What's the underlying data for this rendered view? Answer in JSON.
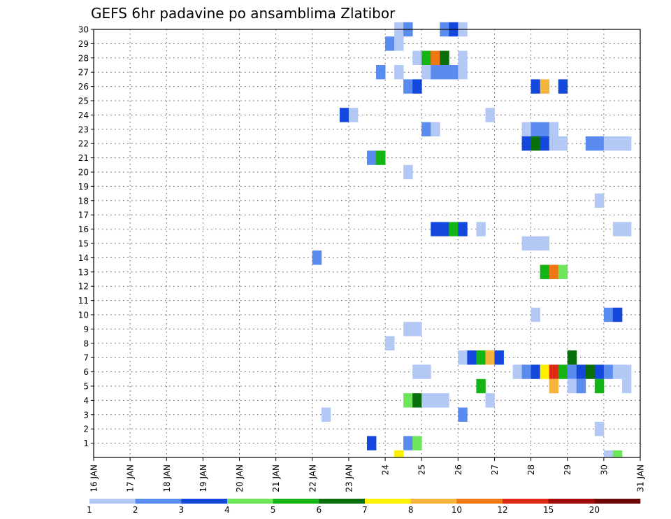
{
  "chart_data": {
    "type": "heatmap",
    "title": "GEFS 6hr padavine po ansamblima Zlatibor",
    "xlabel": "",
    "ylabel": "",
    "grid": true,
    "x_ticks": [
      "16 JAN",
      "17 JAN",
      "18 JAN",
      "19 JAN",
      "20 JAN",
      "21 JAN",
      "22 JAN",
      "23 JAN",
      "24",
      "25",
      "26",
      "27",
      "28",
      "29",
      "30",
      "31 JAN"
    ],
    "y_ticks": [
      "1",
      "2",
      "3",
      "4",
      "5",
      "6",
      "7",
      "8",
      "9",
      "10",
      "11",
      "12",
      "13",
      "14",
      "15",
      "16",
      "17",
      "18",
      "19",
      "20",
      "21",
      "22",
      "23",
      "24",
      "25",
      "26",
      "27",
      "28",
      "29",
      "30"
    ],
    "x_range_days": [
      16,
      31
    ],
    "y_range_members": [
      0,
      30
    ],
    "legend": {
      "position": "bottom",
      "labels": [
        "1",
        "2",
        "3",
        "4",
        "5",
        "6",
        "7",
        "8",
        "10",
        "12",
        "15",
        "20"
      ],
      "colors": [
        "#b4c8f5",
        "#5a8cf0",
        "#1448dc",
        "#6ee65a",
        "#14b414",
        "#0a6e0a",
        "#fff000",
        "#f5b43c",
        "#f07814",
        "#e12814",
        "#a50a0a",
        "#6e0505"
      ]
    },
    "cells": [
      {
        "member": 30,
        "day": 24.25,
        "level": 1
      },
      {
        "member": 30,
        "day": 24.5,
        "level": 2
      },
      {
        "member": 30,
        "day": 25.5,
        "level": 2
      },
      {
        "member": 30,
        "day": 25.75,
        "level": 3
      },
      {
        "member": 30,
        "day": 26.0,
        "level": 1
      },
      {
        "member": 29,
        "day": 24.0,
        "level": 2
      },
      {
        "member": 29,
        "day": 24.25,
        "level": 1
      },
      {
        "member": 28,
        "day": 24.75,
        "level": 1
      },
      {
        "member": 28,
        "day": 25.0,
        "level": 5
      },
      {
        "member": 28,
        "day": 25.25,
        "level": 10
      },
      {
        "member": 28,
        "day": 25.5,
        "level": 6
      },
      {
        "member": 28,
        "day": 26.0,
        "level": 1
      },
      {
        "member": 27,
        "day": 23.75,
        "level": 2
      },
      {
        "member": 27,
        "day": 24.25,
        "level": 1
      },
      {
        "member": 27,
        "day": 25.0,
        "level": 1
      },
      {
        "member": 27,
        "day": 25.25,
        "level": 2
      },
      {
        "member": 27,
        "day": 25.5,
        "level": 2
      },
      {
        "member": 27,
        "day": 25.75,
        "level": 2
      },
      {
        "member": 27,
        "day": 26.0,
        "level": 1
      },
      {
        "member": 26,
        "day": 24.5,
        "level": 2
      },
      {
        "member": 26,
        "day": 24.75,
        "level": 3
      },
      {
        "member": 26,
        "day": 28.0,
        "level": 3
      },
      {
        "member": 26,
        "day": 28.25,
        "level": 8
      },
      {
        "member": 26,
        "day": 28.75,
        "level": 3
      },
      {
        "member": 24,
        "day": 22.75,
        "level": 3
      },
      {
        "member": 24,
        "day": 23.0,
        "level": 1
      },
      {
        "member": 24,
        "day": 26.75,
        "level": 1
      },
      {
        "member": 23,
        "day": 25.0,
        "level": 2
      },
      {
        "member": 23,
        "day": 25.25,
        "level": 1
      },
      {
        "member": 23,
        "day": 27.75,
        "level": 1
      },
      {
        "member": 23,
        "day": 28.0,
        "level": 2
      },
      {
        "member": 23,
        "day": 28.25,
        "level": 2
      },
      {
        "member": 23,
        "day": 28.5,
        "level": 1
      },
      {
        "member": 22,
        "day": 27.75,
        "level": 3
      },
      {
        "member": 22,
        "day": 28.0,
        "level": 6
      },
      {
        "member": 22,
        "day": 28.25,
        "level": 3
      },
      {
        "member": 22,
        "day": 28.5,
        "level": 1
      },
      {
        "member": 22,
        "day": 28.75,
        "level": 1
      },
      {
        "member": 22,
        "day": 29.5,
        "level": 2
      },
      {
        "member": 22,
        "day": 29.75,
        "level": 2
      },
      {
        "member": 22,
        "day": 30.0,
        "level": 1
      },
      {
        "member": 22,
        "day": 30.25,
        "level": 1
      },
      {
        "member": 22,
        "day": 30.5,
        "level": 1
      },
      {
        "member": 21,
        "day": 23.5,
        "level": 2
      },
      {
        "member": 21,
        "day": 23.75,
        "level": 5
      },
      {
        "member": 20,
        "day": 24.5,
        "level": 1
      },
      {
        "member": 18,
        "day": 29.75,
        "level": 1
      },
      {
        "member": 16,
        "day": 25.25,
        "level": 3
      },
      {
        "member": 16,
        "day": 25.5,
        "level": 3
      },
      {
        "member": 16,
        "day": 25.75,
        "level": 5
      },
      {
        "member": 16,
        "day": 26.0,
        "level": 3
      },
      {
        "member": 16,
        "day": 26.5,
        "level": 1
      },
      {
        "member": 16,
        "day": 30.25,
        "level": 1
      },
      {
        "member": 16,
        "day": 30.5,
        "level": 1
      },
      {
        "member": 15,
        "day": 27.75,
        "level": 1
      },
      {
        "member": 15,
        "day": 28.0,
        "level": 1
      },
      {
        "member": 15,
        "day": 28.25,
        "level": 1
      },
      {
        "member": 14,
        "day": 22.0,
        "level": 2
      },
      {
        "member": 13,
        "day": 28.25,
        "level": 5
      },
      {
        "member": 13,
        "day": 28.5,
        "level": 10
      },
      {
        "member": 13,
        "day": 28.75,
        "level": 4
      },
      {
        "member": 10,
        "day": 28.0,
        "level": 1
      },
      {
        "member": 10,
        "day": 30.0,
        "level": 2
      },
      {
        "member": 10,
        "day": 30.25,
        "level": 3
      },
      {
        "member": 9,
        "day": 24.5,
        "level": 1
      },
      {
        "member": 9,
        "day": 24.75,
        "level": 1
      },
      {
        "member": 8,
        "day": 24.0,
        "level": 1
      },
      {
        "member": 7,
        "day": 26.0,
        "level": 1
      },
      {
        "member": 7,
        "day": 26.25,
        "level": 3
      },
      {
        "member": 7,
        "day": 26.5,
        "level": 5
      },
      {
        "member": 7,
        "day": 26.75,
        "level": 8
      },
      {
        "member": 7,
        "day": 27.0,
        "level": 3
      },
      {
        "member": 7,
        "day": 29.0,
        "level": 6
      },
      {
        "member": 6,
        "day": 24.75,
        "level": 1
      },
      {
        "member": 6,
        "day": 25.0,
        "level": 1
      },
      {
        "member": 6,
        "day": 27.5,
        "level": 1
      },
      {
        "member": 6,
        "day": 27.75,
        "level": 2
      },
      {
        "member": 6,
        "day": 28.0,
        "level": 3
      },
      {
        "member": 6,
        "day": 28.25,
        "level": 7
      },
      {
        "member": 6,
        "day": 28.5,
        "level": 12
      },
      {
        "member": 6,
        "day": 28.75,
        "level": 5
      },
      {
        "member": 6,
        "day": 29.0,
        "level": 2
      },
      {
        "member": 6,
        "day": 29.25,
        "level": 3
      },
      {
        "member": 6,
        "day": 29.5,
        "level": 6
      },
      {
        "member": 6,
        "day": 29.75,
        "level": 3
      },
      {
        "member": 6,
        "day": 30.0,
        "level": 2
      },
      {
        "member": 6,
        "day": 30.25,
        "level": 1
      },
      {
        "member": 6,
        "day": 30.5,
        "level": 1
      },
      {
        "member": 5,
        "day": 26.5,
        "level": 5
      },
      {
        "member": 5,
        "day": 28.5,
        "level": 8
      },
      {
        "member": 5,
        "day": 29.0,
        "level": 1
      },
      {
        "member": 5,
        "day": 29.25,
        "level": 2
      },
      {
        "member": 5,
        "day": 29.75,
        "level": 5
      },
      {
        "member": 5,
        "day": 30.5,
        "level": 1
      },
      {
        "member": 4,
        "day": 24.5,
        "level": 4
      },
      {
        "member": 4,
        "day": 24.75,
        "level": 6
      },
      {
        "member": 4,
        "day": 25.0,
        "level": 1
      },
      {
        "member": 4,
        "day": 25.25,
        "level": 1
      },
      {
        "member": 4,
        "day": 25.5,
        "level": 1
      },
      {
        "member": 4,
        "day": 26.75,
        "level": 1
      },
      {
        "member": 3,
        "day": 22.25,
        "level": 1
      },
      {
        "member": 3,
        "day": 26.0,
        "level": 2
      },
      {
        "member": 2,
        "day": 29.75,
        "level": 1
      },
      {
        "member": 1,
        "day": 23.5,
        "level": 3
      },
      {
        "member": 1,
        "day": 24.5,
        "level": 2
      },
      {
        "member": 1,
        "day": 24.75,
        "level": 4
      },
      {
        "member": 0,
        "day": 24.25,
        "level": 7
      },
      {
        "member": 0,
        "day": 30.0,
        "level": 1
      },
      {
        "member": 0,
        "day": 30.25,
        "level": 4
      }
    ]
  }
}
